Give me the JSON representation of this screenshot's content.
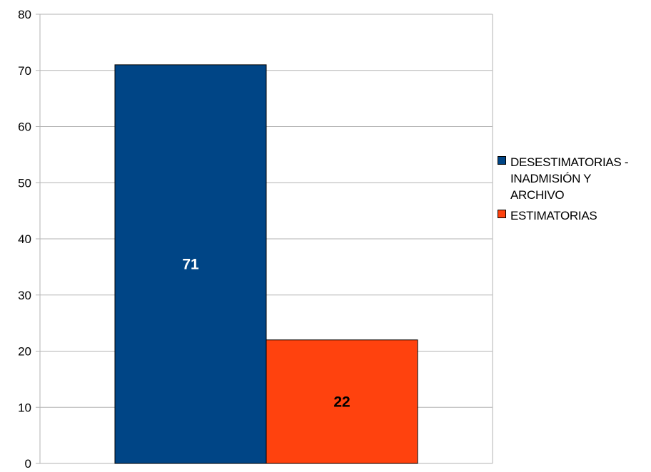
{
  "chart_data": {
    "type": "bar",
    "title": "",
    "xlabel": "",
    "ylabel": "",
    "ylim": [
      0,
      80
    ],
    "y_ticks": [
      0,
      10,
      20,
      30,
      40,
      50,
      60,
      70,
      80
    ],
    "grid": true,
    "legend_placement": "right",
    "series": [
      {
        "name": "DESESTIMATORIAS - INADMISIÓN Y ARCHIVO",
        "value": 71,
        "label": "71",
        "color": "#004586",
        "label_color": "#ffffff"
      },
      {
        "name": "ESTIMATORIAS",
        "value": 22,
        "label": "22",
        "color": "#ff420e",
        "label_color": "#000000"
      }
    ]
  }
}
